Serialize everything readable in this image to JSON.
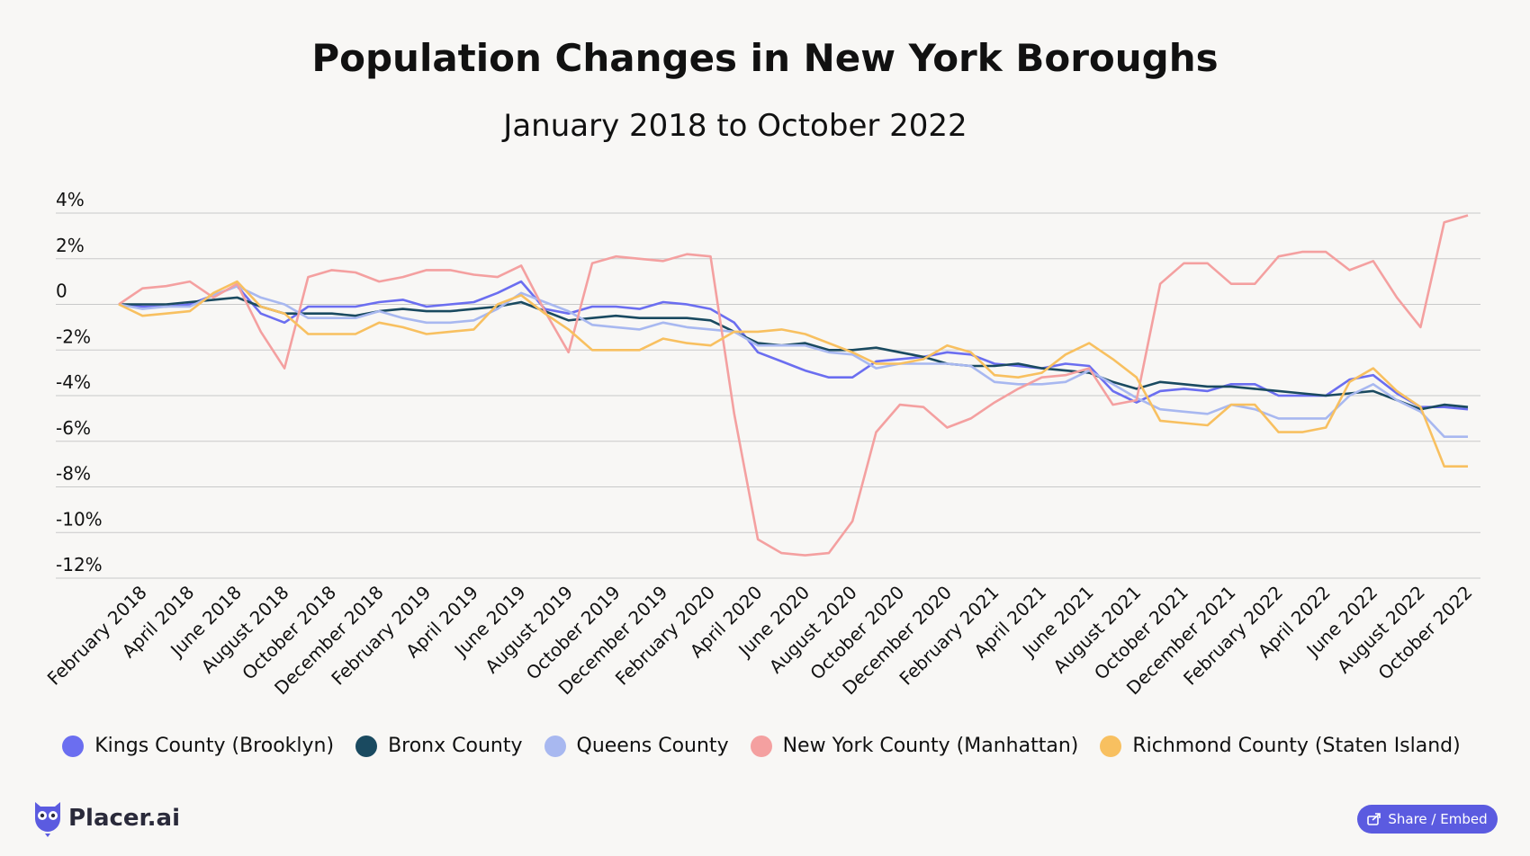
{
  "title": "Population Changes in New York Boroughs",
  "subtitle": "January 2018 to October 2022",
  "share_label": "Share / Embed",
  "brand": "Placer.ai",
  "chart_data": {
    "type": "line",
    "yticks": [
      "4%",
      "2%",
      "0",
      "-2%",
      "-4%",
      "-6%",
      "-8%",
      "-10%",
      "-12%"
    ],
    "ylim": [
      -12,
      4
    ],
    "grid": true,
    "legend_position": "bottom",
    "xticks": [
      "February 2018",
      "April 2018",
      "June 2018",
      "August 2018",
      "October 2018",
      "December 2018",
      "February 2019",
      "April 2019",
      "June 2019",
      "August 2019",
      "October 2019",
      "December 2019",
      "February 2020",
      "April 2020",
      "June 2020",
      "August 2020",
      "October 2020",
      "December 2020",
      "February 2021",
      "April 2021",
      "June 2021",
      "August 2021",
      "October 2021",
      "December 2021",
      "February 2022",
      "April 2022",
      "June 2022",
      "August 2022",
      "October 2022"
    ],
    "x": [
      "2018-01",
      "2018-02",
      "2018-03",
      "2018-04",
      "2018-05",
      "2018-06",
      "2018-07",
      "2018-08",
      "2018-09",
      "2018-10",
      "2018-11",
      "2018-12",
      "2019-01",
      "2019-02",
      "2019-03",
      "2019-04",
      "2019-05",
      "2019-06",
      "2019-07",
      "2019-08",
      "2019-09",
      "2019-10",
      "2019-11",
      "2019-12",
      "2020-01",
      "2020-02",
      "2020-03",
      "2020-04",
      "2020-05",
      "2020-06",
      "2020-07",
      "2020-08",
      "2020-09",
      "2020-10",
      "2020-11",
      "2020-12",
      "2021-01",
      "2021-02",
      "2021-03",
      "2021-04",
      "2021-05",
      "2021-06",
      "2021-07",
      "2021-08",
      "2021-09",
      "2021-10",
      "2021-11",
      "2021-12",
      "2022-01",
      "2022-02",
      "2022-03",
      "2022-04",
      "2022-05",
      "2022-06",
      "2022-07",
      "2022-08",
      "2022-09",
      "2022-10"
    ],
    "series": [
      {
        "name": "Kings County (Brooklyn)",
        "color": "#6b6ef0",
        "values": [
          0.0,
          -0.1,
          -0.1,
          0.0,
          0.4,
          0.8,
          -0.4,
          -0.8,
          -0.1,
          -0.1,
          -0.1,
          0.1,
          0.2,
          -0.1,
          0.0,
          0.1,
          0.5,
          1.0,
          -0.2,
          -0.4,
          -0.1,
          -0.1,
          -0.2,
          0.1,
          0.0,
          -0.2,
          -0.8,
          -2.1,
          -2.5,
          -2.9,
          -3.2,
          -3.2,
          -2.5,
          -2.4,
          -2.3,
          -2.1,
          -2.2,
          -2.6,
          -2.7,
          -2.8,
          -2.6,
          -2.7,
          -3.8,
          -4.3,
          -3.8,
          -3.7,
          -3.8,
          -3.5,
          -3.5,
          -4.0,
          -4.0,
          -4.0,
          -3.3,
          -3.1,
          -3.9,
          -4.5,
          -4.5,
          -4.6
        ]
      },
      {
        "name": "Bronx County",
        "color": "#1a4a60",
        "values": [
          0.0,
          0.0,
          0.0,
          0.1,
          0.2,
          0.3,
          -0.1,
          -0.4,
          -0.4,
          -0.4,
          -0.5,
          -0.3,
          -0.2,
          -0.3,
          -0.3,
          -0.2,
          -0.1,
          0.1,
          -0.3,
          -0.7,
          -0.6,
          -0.5,
          -0.6,
          -0.6,
          -0.6,
          -0.7,
          -1.2,
          -1.7,
          -1.8,
          -1.7,
          -2.0,
          -2.0,
          -1.9,
          -2.1,
          -2.3,
          -2.6,
          -2.7,
          -2.7,
          -2.6,
          -2.8,
          -2.9,
          -3.0,
          -3.4,
          -3.7,
          -3.4,
          -3.5,
          -3.6,
          -3.6,
          -3.7,
          -3.8,
          -3.9,
          -4.0,
          -3.9,
          -3.8,
          -4.2,
          -4.6,
          -4.4,
          -4.5
        ]
      },
      {
        "name": "Queens County",
        "color": "#a8b8f0",
        "values": [
          0.0,
          -0.2,
          -0.1,
          -0.1,
          0.4,
          0.8,
          0.3,
          0.0,
          -0.6,
          -0.6,
          -0.6,
          -0.3,
          -0.6,
          -0.8,
          -0.8,
          -0.7,
          -0.2,
          0.5,
          0.1,
          -0.3,
          -0.9,
          -1.0,
          -1.1,
          -0.8,
          -1.0,
          -1.1,
          -1.2,
          -1.8,
          -1.8,
          -1.8,
          -2.1,
          -2.2,
          -2.8,
          -2.6,
          -2.6,
          -2.6,
          -2.7,
          -3.4,
          -3.5,
          -3.5,
          -3.4,
          -2.9,
          -3.5,
          -4.1,
          -4.6,
          -4.7,
          -4.8,
          -4.4,
          -4.6,
          -5.0,
          -5.0,
          -5.0,
          -4.0,
          -3.5,
          -4.2,
          -4.7,
          -5.8,
          -5.8
        ]
      },
      {
        "name": "New York County (Manhattan)",
        "color": "#f4a0a0",
        "values": [
          0.0,
          0.7,
          0.8,
          1.0,
          0.3,
          0.9,
          -1.2,
          -2.8,
          1.2,
          1.5,
          1.4,
          1.0,
          1.2,
          1.5,
          1.5,
          1.3,
          1.2,
          1.7,
          -0.3,
          -2.1,
          1.8,
          2.1,
          2.0,
          1.9,
          2.2,
          2.1,
          -4.8,
          -10.3,
          -10.9,
          -11.0,
          -10.9,
          -9.5,
          -5.6,
          -4.4,
          -4.5,
          -5.4,
          -5.0,
          -4.3,
          -3.7,
          -3.2,
          -3.1,
          -2.8,
          -4.4,
          -4.2,
          0.9,
          1.8,
          1.8,
          0.9,
          0.9,
          2.1,
          2.3,
          2.3,
          1.5,
          1.9,
          0.3,
          -1.0,
          3.6,
          3.9
        ]
      },
      {
        "name": "Richmond County (Staten Island)",
        "color": "#f8c060",
        "values": [
          0.0,
          -0.5,
          -0.4,
          -0.3,
          0.5,
          1.0,
          -0.1,
          -0.4,
          -1.3,
          -1.3,
          -1.3,
          -0.8,
          -1.0,
          -1.3,
          -1.2,
          -1.1,
          0.0,
          0.4,
          -0.4,
          -1.1,
          -2.0,
          -2.0,
          -2.0,
          -1.5,
          -1.7,
          -1.8,
          -1.2,
          -1.2,
          -1.1,
          -1.3,
          -1.7,
          -2.1,
          -2.6,
          -2.6,
          -2.4,
          -1.8,
          -2.1,
          -3.1,
          -3.2,
          -3.0,
          -2.2,
          -1.7,
          -2.4,
          -3.2,
          -5.1,
          -5.2,
          -5.3,
          -4.4,
          -4.4,
          -5.6,
          -5.6,
          -5.4,
          -3.4,
          -2.8,
          -3.8,
          -4.5,
          -7.1,
          -7.1
        ]
      }
    ]
  }
}
